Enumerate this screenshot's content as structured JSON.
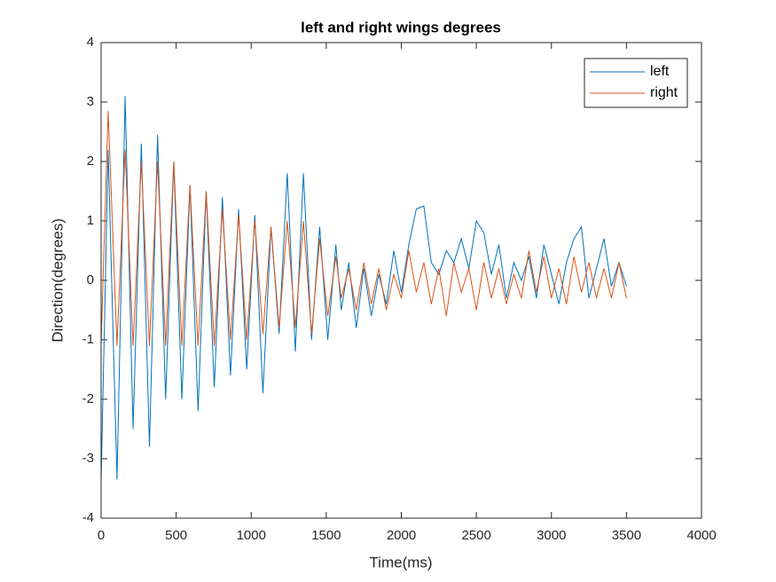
{
  "chart_data": {
    "type": "line",
    "title": "left and right wings degrees",
    "x_label": "Time(ms)",
    "y_label": "Direction(degrees)",
    "x": [
      0,
      47,
      106,
      160,
      213,
      268,
      322,
      376,
      430,
      484,
      538,
      592,
      646,
      700,
      754,
      808,
      862,
      916,
      970,
      1024,
      1078,
      1132,
      1186,
      1240,
      1294,
      1348,
      1402,
      1456,
      1510,
      1564,
      1600,
      1650,
      1700,
      1750,
      1800,
      1850,
      1900,
      1950,
      2000,
      2050,
      2100,
      2150,
      2200,
      2250,
      2300,
      2350,
      2400,
      2450,
      2500,
      2550,
      2600,
      2650,
      2700,
      2750,
      2800,
      2850,
      2900,
      2950,
      3000,
      3050,
      3100,
      3150,
      3200,
      3250,
      3300,
      3350,
      3400,
      3450,
      3500
    ],
    "series": [
      {
        "name": "left",
        "color": "#0072BD",
        "values": [
          -3.4,
          2.2,
          -3.35,
          3.1,
          -2.5,
          2.3,
          -2.8,
          2.45,
          -2.0,
          2.0,
          -2.0,
          1.6,
          -2.2,
          1.5,
          -1.8,
          1.4,
          -1.6,
          1.2,
          -1.5,
          1.1,
          -1.9,
          0.9,
          -0.9,
          1.8,
          -1.2,
          1.8,
          -1.0,
          0.9,
          -1.0,
          0.6,
          -0.5,
          0.3,
          -0.8,
          0.2,
          -0.6,
          0.1,
          -0.4,
          0.5,
          -0.2,
          0.6,
          1.2,
          1.25,
          0.3,
          0.1,
          0.5,
          0.3,
          0.7,
          0.2,
          1.0,
          0.8,
          0.1,
          0.6,
          -0.3,
          0.3,
          0.0,
          0.4,
          -0.3,
          0.6,
          0.1,
          -0.4,
          0.3,
          0.7,
          0.9,
          -0.3,
          0.2,
          0.7,
          -0.1,
          0.3,
          -0.1
        ]
      },
      {
        "name": "right",
        "color": "#D95319",
        "values": [
          -1.1,
          2.85,
          -1.1,
          2.2,
          -1.1,
          2.0,
          -1.1,
          2.0,
          -1.1,
          2.0,
          -1.1,
          1.6,
          -1.1,
          1.5,
          -1.1,
          1.2,
          -1.0,
          1.1,
          -1.0,
          1.0,
          -0.9,
          0.9,
          -0.8,
          1.0,
          -0.8,
          1.0,
          -0.9,
          0.7,
          -0.6,
          0.4,
          -0.3,
          0.2,
          -0.5,
          0.3,
          -0.4,
          0.2,
          -0.5,
          0.1,
          -0.3,
          0.5,
          -0.2,
          0.3,
          -0.4,
          0.2,
          -0.6,
          0.3,
          -0.2,
          0.2,
          -0.5,
          0.3,
          -0.3,
          0.2,
          -0.4,
          0.1,
          -0.3,
          0.5,
          -0.2,
          0.4,
          -0.3,
          0.2,
          -0.4,
          0.4,
          -0.2,
          0.3,
          -0.3,
          0.2,
          -0.3,
          0.3,
          -0.3
        ]
      }
    ],
    "xlim": [
      0,
      4000
    ],
    "xticks": [
      0,
      500,
      1000,
      1500,
      2000,
      2500,
      3000,
      3500,
      4000
    ],
    "ylim": [
      -4,
      4
    ],
    "yticks": [
      -4,
      -3,
      -2,
      -1,
      0,
      1,
      2,
      3,
      4
    ],
    "legend": "upper right"
  }
}
